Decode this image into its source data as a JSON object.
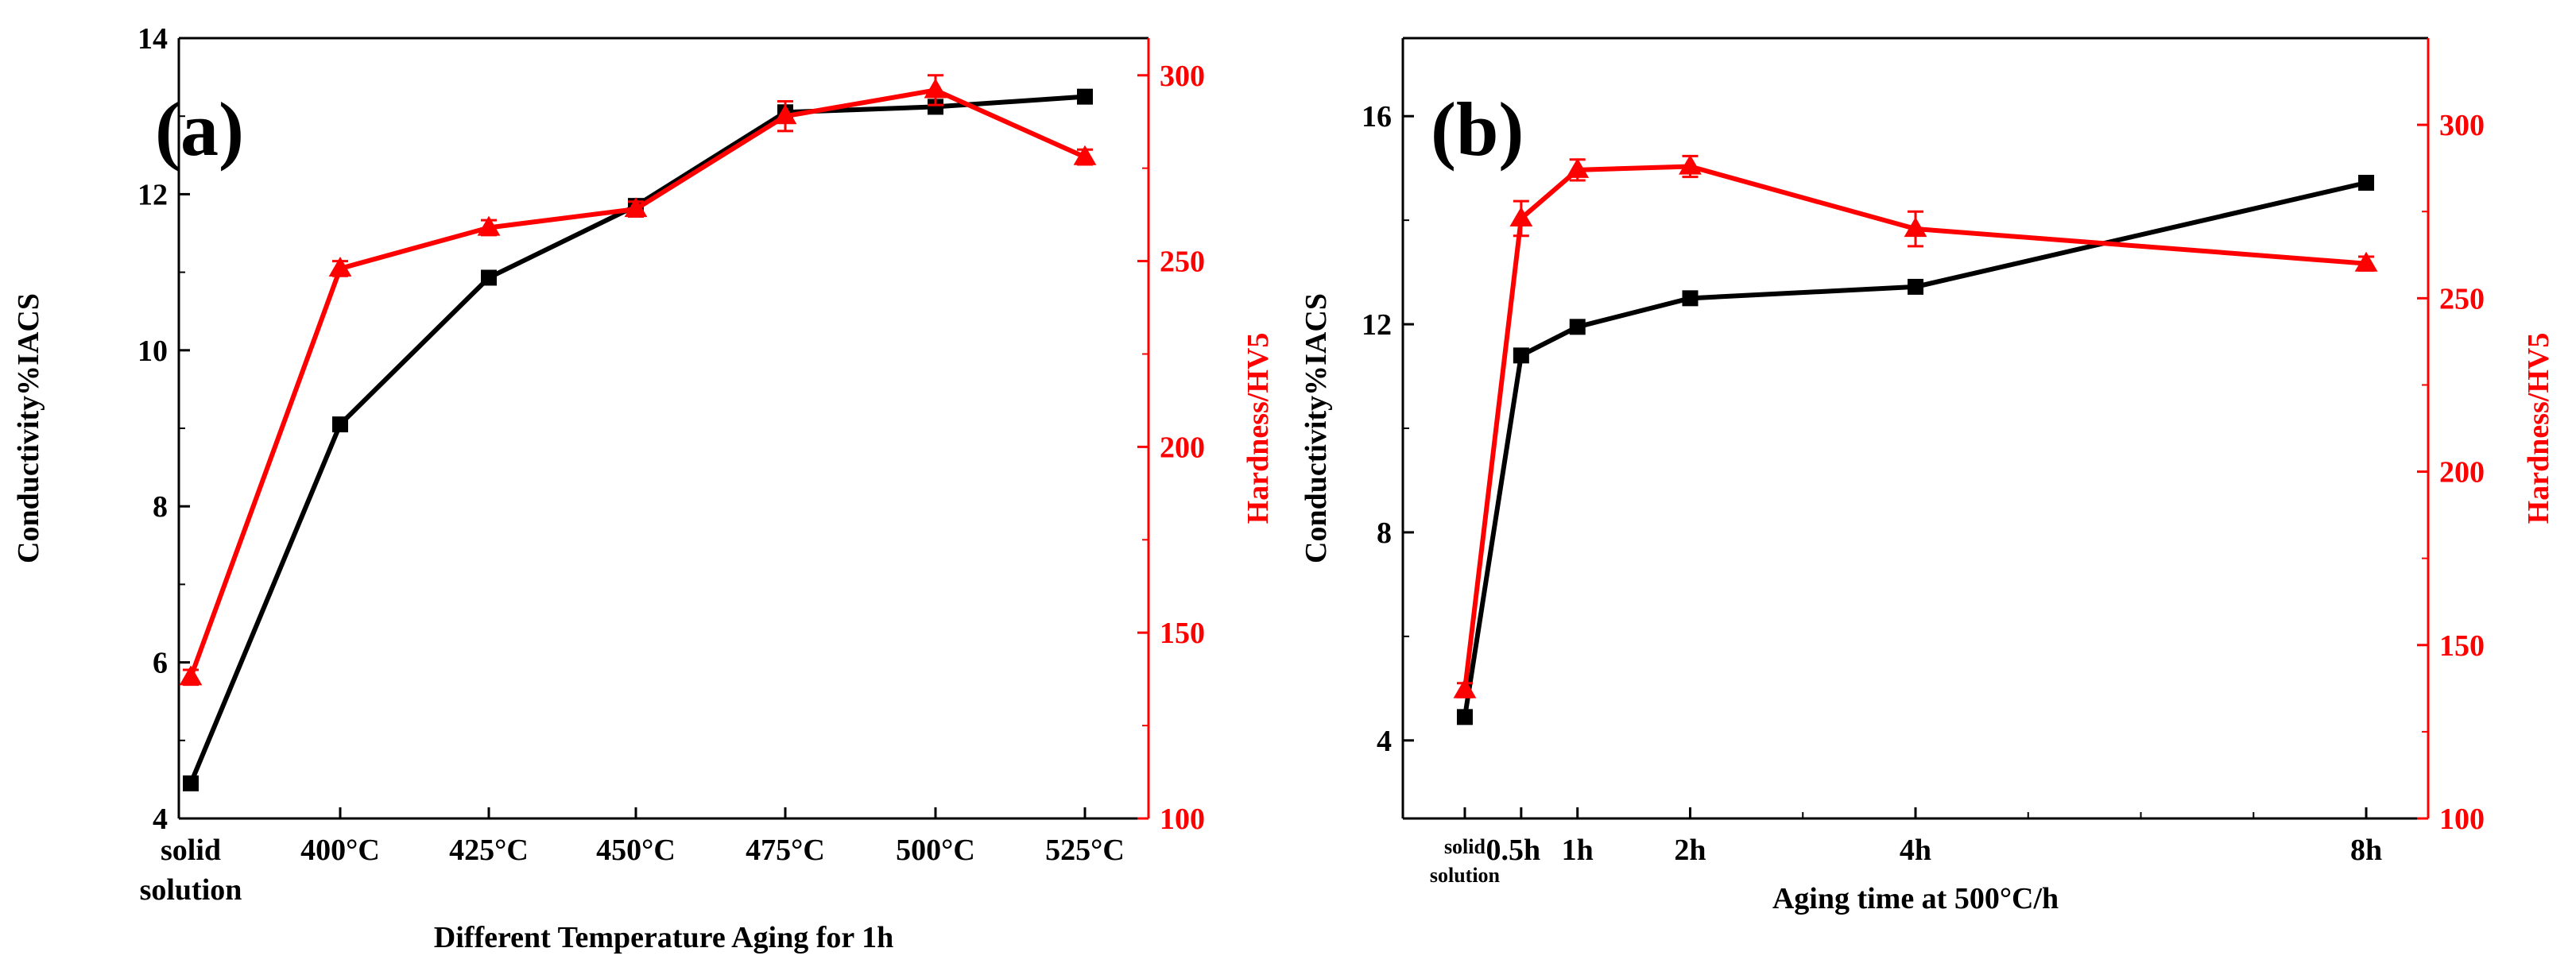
{
  "colors": {
    "conductivity": "#000000",
    "hardness": "#ff0000",
    "axis": "#000000"
  },
  "chart_data": [
    {
      "type": "line",
      "panel_label": "(a)",
      "xlabel": "Different Temperature Aging for 1h",
      "ylabel_left": "Conductivity%IACS",
      "ylabel_right": "Hardness/HV5",
      "categories": [
        {
          "lines": [
            "solid",
            "solution"
          ]
        },
        {
          "lines": [
            "400°C"
          ]
        },
        {
          "lines": [
            "425°C"
          ]
        },
        {
          "lines": [
            "450°C"
          ]
        },
        {
          "lines": [
            "475°C"
          ]
        },
        {
          "lines": [
            "500°C"
          ]
        },
        {
          "lines": [
            "525°C"
          ]
        }
      ],
      "ylim_left": [
        4,
        14
      ],
      "yticks_left": [
        4,
        6,
        8,
        10,
        12,
        14
      ],
      "ylim_right": [
        100,
        310
      ],
      "yticks_right": [
        100,
        150,
        200,
        250,
        300
      ],
      "series": [
        {
          "name": "Conductivity",
          "axis": "left",
          "marker": "square",
          "x": [
            0,
            1,
            2,
            3,
            4,
            5,
            6
          ],
          "values": [
            4.45,
            9.05,
            10.93,
            11.85,
            13.05,
            13.12,
            13.25
          ]
        },
        {
          "name": "Hardness",
          "axis": "right",
          "marker": "triangle",
          "x": [
            0,
            1,
            2,
            3,
            4,
            5,
            6
          ],
          "values": [
            138,
            248,
            259,
            264,
            289,
            296,
            278
          ],
          "errors": [
            2,
            2,
            2,
            2,
            4,
            4,
            2
          ]
        }
      ]
    },
    {
      "type": "line",
      "panel_label": "(b)",
      "xlabel": "Aging time at 500°C/h",
      "ylabel_left": "Conductivity%IACS",
      "ylabel_right": "Hardness/HV5",
      "xticks": [
        {
          "x": 0,
          "lines": [
            "solid",
            "solution"
          ],
          "small": true
        },
        {
          "x": 0.5,
          "lines": [
            "0.5h"
          ]
        },
        {
          "x": 1,
          "lines": [
            "1h"
          ]
        },
        {
          "x": 2,
          "lines": [
            "2h"
          ]
        },
        {
          "x": 4,
          "lines": [
            "4h"
          ]
        },
        {
          "x": 8,
          "lines": [
            "8h"
          ]
        }
      ],
      "xlim": [
        -0.55,
        8.55
      ],
      "ylim_left": [
        2.5,
        17.5
      ],
      "yticks_left": [
        4,
        8,
        12,
        16
      ],
      "ylim_right": [
        100,
        325
      ],
      "yticks_right": [
        100,
        150,
        200,
        250,
        300
      ],
      "series": [
        {
          "name": "Conductivity",
          "axis": "left",
          "marker": "square",
          "x": [
            0,
            0.5,
            1,
            2,
            4,
            8
          ],
          "values": [
            4.45,
            11.4,
            11.95,
            12.5,
            12.72,
            14.72
          ]
        },
        {
          "name": "Hardness",
          "axis": "right",
          "marker": "triangle",
          "x": [
            0,
            0.5,
            1,
            2,
            4,
            8
          ],
          "values": [
            137,
            273,
            287,
            288,
            270,
            260
          ],
          "errors": [
            2,
            5,
            3,
            3,
            5,
            2
          ]
        }
      ]
    }
  ]
}
